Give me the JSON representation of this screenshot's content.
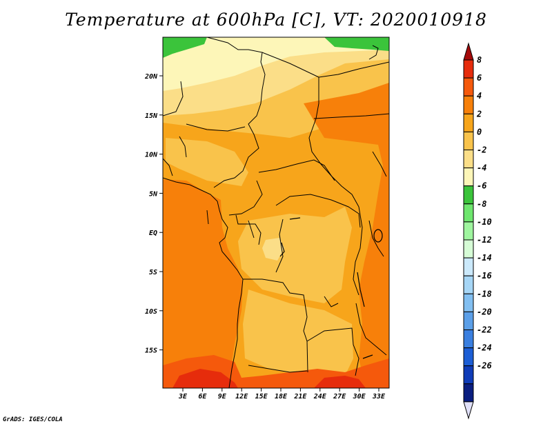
{
  "title": "Temperature at 600hPa [C], VT: 2020010918",
  "credit": "GrADS: IGES/COLA",
  "map": {
    "lat_labels": [
      "20N",
      "15N",
      "10N",
      "5N",
      "EQ",
      "5S",
      "10S",
      "15S"
    ],
    "lon_labels": [
      "3E",
      "6E",
      "9E",
      "12E",
      "15E",
      "18E",
      "21E",
      "24E",
      "27E",
      "30E",
      "33E"
    ]
  },
  "colorbar": {
    "labels": [
      "8",
      "6",
      "4",
      "2",
      "0",
      "-2",
      "-4",
      "-6",
      "-8",
      "-10",
      "-12",
      "-14",
      "-16",
      "-18",
      "-20",
      "-22",
      "-24",
      "-26"
    ],
    "colors": [
      "#a50a0a",
      "#e62c0c",
      "#f5590c",
      "#f7800a",
      "#f7a51b",
      "#f9c34b",
      "#fbde88",
      "#fdf6b8",
      "#3bc43b",
      "#6ee66e",
      "#9ff59f",
      "#d6fcd6",
      "#cbe9fb",
      "#a6d6f6",
      "#82bff1",
      "#5b9fe8",
      "#3a7fe0",
      "#1c5ed5",
      "#0f3cb8",
      "#0a1e80",
      "#e0e0f8"
    ],
    "scale_max": 8,
    "scale_min": -26
  }
}
